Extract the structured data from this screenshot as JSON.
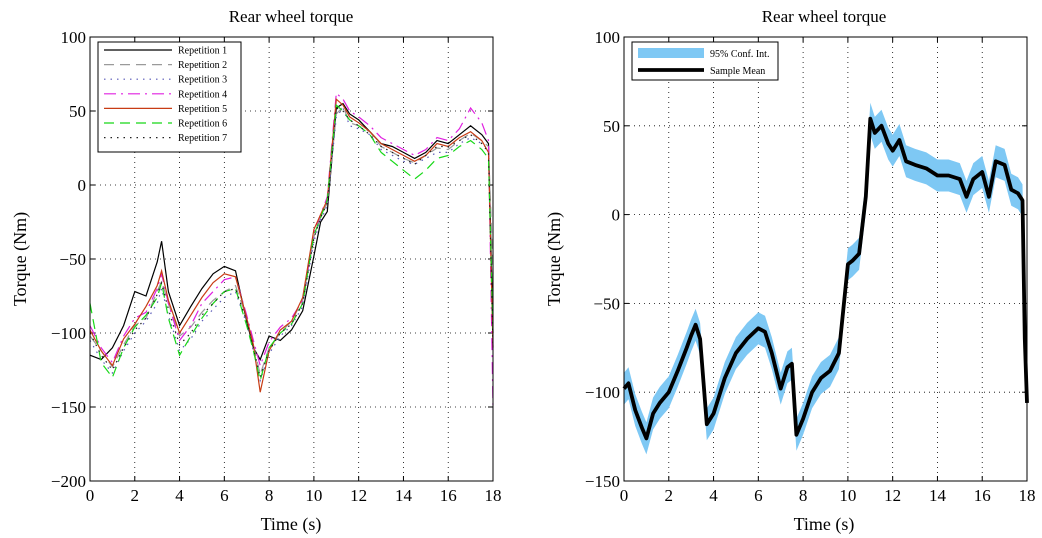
{
  "chart_data": [
    {
      "type": "line",
      "title": "Rear wheel torque",
      "xlabel": "Time (s)",
      "ylabel": "Torque (Nm)",
      "xlim": [
        0,
        18
      ],
      "ylim": [
        -200,
        100
      ],
      "xticks": [
        "0",
        "2",
        "4",
        "6",
        "8",
        "10",
        "12",
        "14",
        "16",
        "18"
      ],
      "yticks": [
        "100",
        "50",
        "0",
        "−50",
        "−100",
        "−150",
        "−200"
      ],
      "grid": true,
      "legend_position": "top-left",
      "x": [
        0,
        0.5,
        1,
        1.5,
        2,
        2.5,
        3,
        3.2,
        3.5,
        4,
        4.5,
        5,
        5.5,
        6,
        6.5,
        7,
        7.3,
        7.6,
        8,
        8.5,
        9,
        9.5,
        10,
        10.3,
        10.6,
        11,
        11.3,
        11.6,
        12,
        12.5,
        13,
        13.5,
        14,
        14.5,
        15,
        15.5,
        16,
        16.5,
        17,
        17.5,
        17.8,
        18
      ],
      "series": [
        {
          "name": "Repetition 1",
          "color": "#000000",
          "dash": "",
          "values": [
            -115,
            -118,
            -110,
            -95,
            -72,
            -75,
            -52,
            -38,
            -72,
            -95,
            -82,
            -70,
            -60,
            -55,
            -58,
            -92,
            -110,
            -118,
            -102,
            -105,
            -98,
            -85,
            -48,
            -25,
            -18,
            52,
            55,
            48,
            44,
            36,
            28,
            26,
            22,
            18,
            22,
            30,
            28,
            34,
            40,
            34,
            28,
            -100
          ]
        },
        {
          "name": "Repetition 2",
          "color": "#9a9a9a",
          "dash": "10 6",
          "values": [
            -102,
            -112,
            -123,
            -108,
            -95,
            -90,
            -72,
            -65,
            -80,
            -102,
            -96,
            -86,
            -78,
            -72,
            -68,
            -90,
            -108,
            -128,
            -110,
            -100,
            -92,
            -78,
            -35,
            -22,
            -12,
            48,
            53,
            42,
            40,
            36,
            26,
            22,
            18,
            15,
            20,
            25,
            24,
            30,
            35,
            30,
            26,
            -60
          ]
        },
        {
          "name": "Repetition 3",
          "color": "#5a5ab8",
          "dash": "1.5 5",
          "values": [
            -105,
            -118,
            -127,
            -112,
            -100,
            -92,
            -80,
            -70,
            -88,
            -112,
            -104,
            -92,
            -84,
            -76,
            -72,
            -94,
            -112,
            -132,
            -114,
            -102,
            -95,
            -82,
            -38,
            -24,
            -14,
            46,
            52,
            40,
            38,
            34,
            24,
            20,
            16,
            14,
            18,
            22,
            22,
            28,
            32,
            28,
            24,
            -110
          ]
        },
        {
          "name": "Repetition 4",
          "color": "#e020e0",
          "dash": "12 5 2 5",
          "values": [
            -95,
            -110,
            -120,
            -102,
            -90,
            -86,
            -70,
            -60,
            -80,
            -105,
            -95,
            -80,
            -72,
            -64,
            -62,
            -88,
            -105,
            -122,
            -106,
            -96,
            -90,
            -78,
            -32,
            -20,
            -8,
            62,
            58,
            50,
            46,
            40,
            32,
            28,
            24,
            20,
            24,
            32,
            30,
            38,
            52,
            42,
            30,
            -150
          ]
        },
        {
          "name": "Repetition 5",
          "color": "#c83c14",
          "dash": "",
          "values": [
            -98,
            -112,
            -122,
            -104,
            -94,
            -82,
            -68,
            -58,
            -78,
            -100,
            -88,
            -76,
            -66,
            -60,
            -62,
            -90,
            -108,
            -140,
            -112,
            -98,
            -92,
            -76,
            -30,
            -20,
            -10,
            58,
            54,
            46,
            42,
            36,
            28,
            24,
            20,
            16,
            20,
            28,
            26,
            32,
            36,
            30,
            22,
            -110
          ]
        },
        {
          "name": "Repetition 6",
          "color": "#18d818",
          "dash": "10 6",
          "values": [
            -80,
            -120,
            -130,
            -110,
            -96,
            -88,
            -76,
            -66,
            -90,
            -115,
            -102,
            -90,
            -80,
            -72,
            -70,
            -95,
            -112,
            -132,
            -110,
            -100,
            -94,
            -80,
            -34,
            -22,
            -10,
            54,
            50,
            44,
            40,
            34,
            22,
            16,
            10,
            4,
            10,
            18,
            20,
            26,
            30,
            24,
            18,
            -100
          ]
        },
        {
          "name": "Repetition 7",
          "color": "#222222",
          "dash": "1.5 5",
          "values": [
            -100,
            -115,
            -125,
            -110,
            -98,
            -90,
            -74,
            -66,
            -84,
            -108,
            -100,
            -88,
            -80,
            -72,
            -70,
            -92,
            -110,
            -130,
            -112,
            -100,
            -94,
            -80,
            -36,
            -22,
            -12,
            52,
            50,
            44,
            40,
            34,
            26,
            22,
            18,
            14,
            20,
            26,
            26,
            30,
            34,
            28,
            22,
            -110
          ]
        }
      ]
    },
    {
      "type": "line",
      "title": "Rear wheel torque",
      "xlabel": "Time (s)",
      "ylabel": "Torque (Nm)",
      "xlim": [
        0,
        18
      ],
      "ylim": [
        -150,
        100
      ],
      "xticks": [
        "0",
        "2",
        "4",
        "6",
        "8",
        "10",
        "12",
        "14",
        "16",
        "18"
      ],
      "yticks": [
        "100",
        "50",
        "0",
        "−50",
        "−100",
        "−150"
      ],
      "grid": true,
      "legend_position": "top-left",
      "x": [
        0,
        0.2,
        0.5,
        0.8,
        1,
        1.3,
        1.6,
        2,
        2.4,
        2.8,
        3.0,
        3.2,
        3.4,
        3.7,
        4.0,
        4.5,
        5,
        5.5,
        6,
        6.3,
        6.6,
        7,
        7.3,
        7.5,
        7.7,
        8,
        8.4,
        8.8,
        9.2,
        9.6,
        10,
        10.2,
        10.5,
        10.8,
        11,
        11.2,
        11.5,
        11.8,
        12,
        12.3,
        12.6,
        13,
        13.5,
        14,
        14.5,
        15,
        15.3,
        15.6,
        16,
        16.3,
        16.6,
        17,
        17.3,
        17.6,
        17.8,
        17.9,
        18
      ],
      "values": [
        -98,
        -95,
        -110,
        -120,
        -126,
        -112,
        -106,
        -100,
        -88,
        -75,
        -68,
        -62,
        -70,
        -118,
        -112,
        -92,
        -78,
        -70,
        -64,
        -66,
        -78,
        -98,
        -86,
        -84,
        -124,
        -115,
        -100,
        -92,
        -88,
        -78,
        -28,
        -26,
        -22,
        10,
        54,
        46,
        50,
        40,
        36,
        42,
        30,
        28,
        26,
        22,
        22,
        20,
        10,
        20,
        24,
        10,
        30,
        28,
        14,
        12,
        8,
        -70,
        -106
      ],
      "series": [
        {
          "name": "95% Conf. Int.",
          "color": "#7ec8f4",
          "halfwidth": 9
        },
        {
          "name": "Sample Mean",
          "color": "#000000"
        }
      ]
    }
  ]
}
